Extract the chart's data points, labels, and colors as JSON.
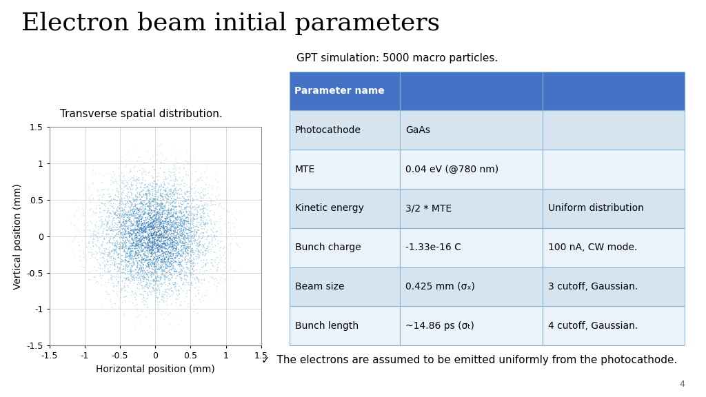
{
  "title": "Electron beam initial parameters",
  "scatter_title": "Transverse spatial distribution.",
  "gpt_title": "GPT simulation: 5000 macro particles.",
  "n_particles": 5000,
  "sigma_mm": 0.425,
  "cutoff": 3,
  "xlim": [
    -1.5,
    1.5
  ],
  "ylim": [
    -1.5,
    1.5
  ],
  "xticks": [
    -1.5,
    -1,
    -0.5,
    0,
    0.5,
    1,
    1.5
  ],
  "yticks": [
    -1.5,
    -1,
    -0.5,
    0,
    0.5,
    1,
    1.5
  ],
  "xlabel": "Horizontal position (mm)",
  "ylabel": "Vertical position (mm)",
  "bg_color": "#ffffff",
  "table_header_bg": "#4472C4",
  "table_header_fg": "#ffffff",
  "table_row_bg1": "#D6E4F0",
  "table_row_bg2": "#EAF2FA",
  "table_border": "#8AB4D4",
  "table_data": [
    [
      "Photocathode",
      "GaAs",
      ""
    ],
    [
      "MTE",
      "0.04 eV (@780 nm)",
      ""
    ],
    [
      "Kinetic energy",
      "3/2 * MTE",
      "Uniform distribution"
    ],
    [
      "Bunch charge",
      "-1.33e-16 C",
      "100 nA, CW mode."
    ],
    [
      "Beam size",
      "0.425 mm (σₓ)",
      "3 cutoff, Gaussian."
    ],
    [
      "Bunch length",
      "~14.86 ps (σₜ)",
      "4 cutoff, Gaussian."
    ]
  ],
  "table_header": [
    "Parameter name",
    "",
    ""
  ],
  "footnote": "The electrons are assumed to be emitted uniformly from the photocathode.",
  "page_number": "4",
  "title_fontsize": 26,
  "subtitle_fontsize": 11,
  "axis_label_fontsize": 10,
  "tick_fontsize": 9,
  "table_fontsize": 10,
  "footnote_fontsize": 11
}
